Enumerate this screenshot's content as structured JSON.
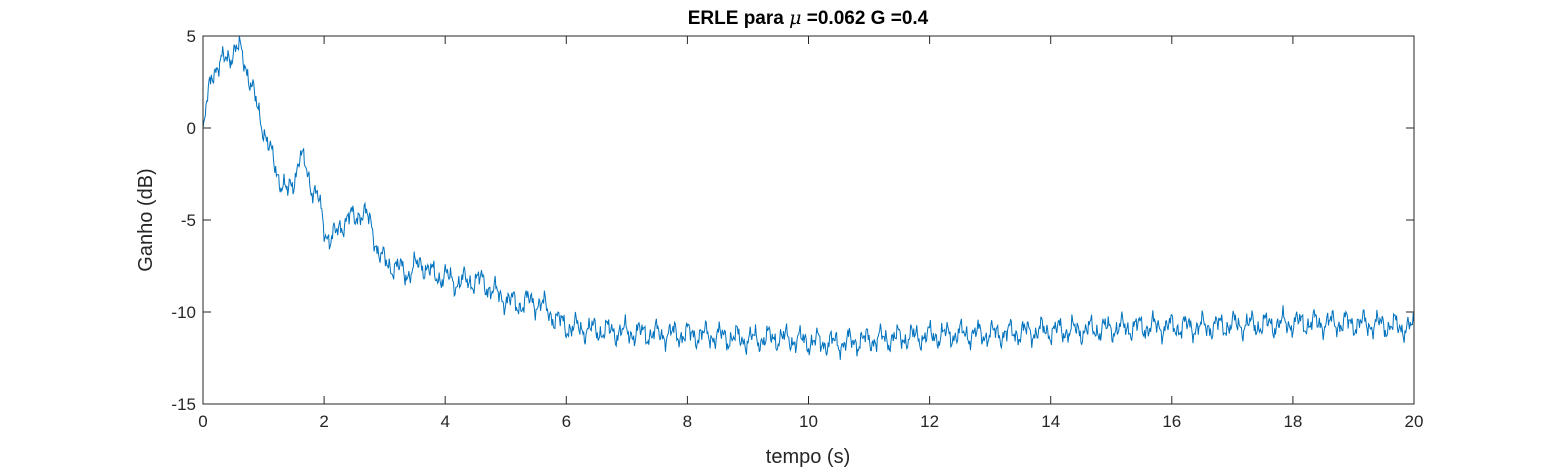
{
  "chart_data": {
    "type": "line",
    "title": {
      "prefix": "ERLE para ",
      "symbol": "μ",
      "suffix": " =0.062 G =0.4"
    },
    "xlabel": "tempo (s)",
    "ylabel": "Ganho (dB)",
    "xlim": [
      0,
      20
    ],
    "ylim": [
      -15,
      5
    ],
    "xticks": [
      0,
      2,
      4,
      6,
      8,
      10,
      12,
      14,
      16,
      18,
      20
    ],
    "xtick_labels": [
      "0",
      "2",
      "4",
      "6",
      "8",
      "10",
      "12",
      "14",
      "16",
      "18",
      "20"
    ],
    "yticks": [
      5,
      0,
      -5,
      -10,
      -15
    ],
    "ytick_labels": [
      "5",
      "0",
      "-5",
      "-10",
      "-15"
    ],
    "grid": false,
    "box": true,
    "line_color": "#0072BD",
    "series": [
      {
        "x": [
          0,
          0.05,
          0.1,
          0.15,
          0.2,
          0.3,
          0.4,
          0.5,
          0.6,
          0.7,
          0.8,
          0.9,
          1.0,
          1.1,
          1.2,
          1.3,
          1.4,
          1.5,
          1.6,
          1.7,
          1.8,
          1.9,
          2.0,
          2.1,
          2.2,
          2.3,
          2.4,
          2.5,
          2.6,
          2.7,
          2.8,
          2.9,
          3.0,
          3.2,
          3.4,
          3.6,
          3.8,
          4.0,
          4.2,
          4.4,
          4.6,
          4.8,
          5.0,
          5.2,
          5.4,
          5.6,
          5.8,
          6.0,
          6.5,
          7.0,
          7.5,
          8.0,
          8.5,
          9.0,
          9.5,
          10.0,
          10.5,
          11.0,
          11.5,
          12.0,
          12.5,
          13.0,
          13.5,
          14.0,
          14.5,
          15.0,
          15.5,
          16.0,
          16.5,
          17.0,
          17.5,
          18.0,
          18.5,
          19.0,
          19.5,
          20.0
        ],
        "y": [
          -0.5,
          1.0,
          2.0,
          3.0,
          3.3,
          3.5,
          3.8,
          4.2,
          4.3,
          3.5,
          2.3,
          1.0,
          0.0,
          -1.2,
          -2.2,
          -3.0,
          -3.6,
          -2.8,
          -1.5,
          -2.2,
          -3.2,
          -3.8,
          -5.5,
          -6.0,
          -5.8,
          -5.2,
          -4.8,
          -5.0,
          -4.5,
          -4.8,
          -5.5,
          -6.8,
          -7.3,
          -7.6,
          -7.9,
          -7.3,
          -8.0,
          -8.1,
          -8.4,
          -8.3,
          -8.3,
          -8.9,
          -9.3,
          -9.6,
          -9.4,
          -9.6,
          -10.3,
          -10.8,
          -11.0,
          -11.1,
          -11.2,
          -11.2,
          -11.3,
          -11.5,
          -11.4,
          -11.6,
          -11.7,
          -11.5,
          -11.4,
          -11.3,
          -11.2,
          -11.2,
          -11.1,
          -11.0,
          -11.0,
          -10.9,
          -10.8,
          -10.8,
          -10.8,
          -10.7,
          -10.7,
          -10.6,
          -10.6,
          -10.6,
          -10.7,
          -10.9
        ]
      }
    ]
  }
}
